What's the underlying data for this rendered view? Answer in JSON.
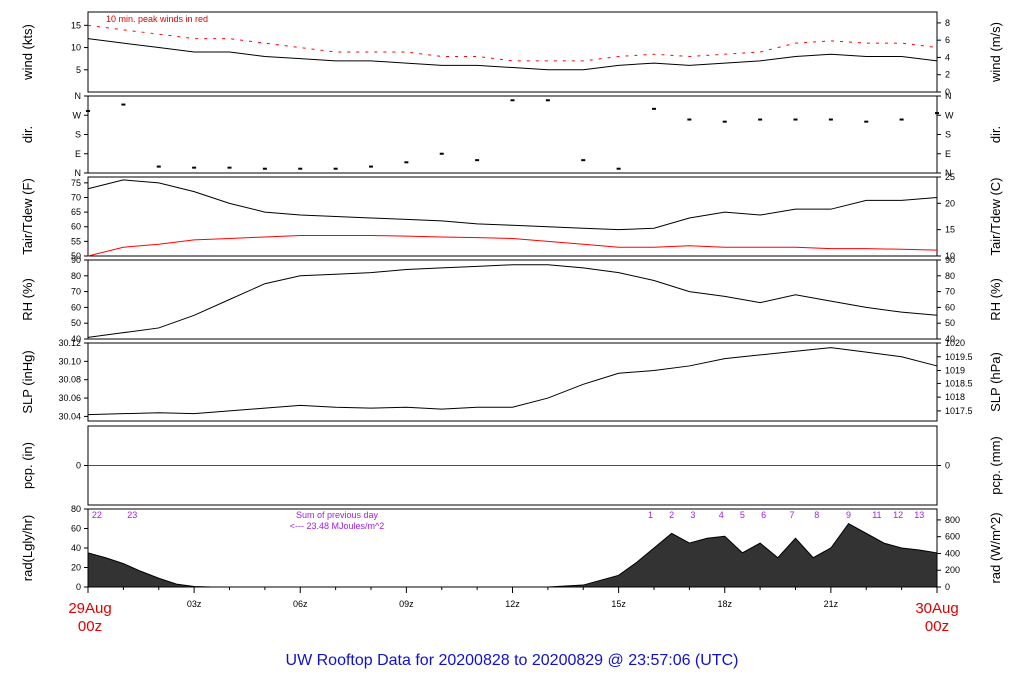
{
  "title": "UW Rooftop Data for 20200828  to  20200829 @ 23:57:06  (UTC)",
  "date_start": [
    "29Aug",
    "00z"
  ],
  "date_end": [
    "30Aug",
    "00z"
  ],
  "x_ticks": [
    "03z",
    "06z",
    "09z",
    "12z",
    "15z",
    "18z",
    "21z"
  ],
  "colors": {
    "series": "#000000",
    "peak": "#ff0000",
    "dewpoint": "#ff0000",
    "precip": "#ff0000",
    "purple": "#a020f0",
    "title": "#1010d0"
  },
  "chart_data": [
    {
      "id": "wind",
      "type": "line",
      "left_label": "wind (kts)",
      "right_label": "wind (m/s)",
      "annotation": "10 min. peak winds in red",
      "ylim": [
        0,
        18
      ],
      "left_ticks": [
        "5",
        "10",
        "15"
      ],
      "left_tick_values": [
        5,
        10,
        15
      ],
      "right_ticks": [
        "0",
        "2",
        "4",
        "6",
        "8"
      ],
      "right_tick_values": [
        0,
        3.89,
        7.78,
        11.66,
        15.55
      ],
      "x": [
        0,
        1,
        2,
        3,
        4,
        5,
        6,
        7,
        8,
        9,
        10,
        11,
        12,
        13,
        14,
        15,
        16,
        17,
        18,
        19,
        20,
        21,
        22,
        23,
        24
      ],
      "series": [
        {
          "values": [
            12,
            11,
            10,
            9,
            9,
            8,
            7.5,
            7,
            7,
            6.5,
            6,
            6,
            5.5,
            5,
            5,
            6,
            6.5,
            6,
            6.5,
            7,
            8,
            8.5,
            8,
            8,
            7
          ]
        },
        {
          "values": [
            15,
            14,
            13,
            12,
            12,
            11,
            10,
            9,
            9,
            9,
            8,
            8,
            7,
            7,
            7,
            8,
            8.5,
            8,
            8.5,
            9,
            11,
            11.5,
            11,
            11,
            10
          ]
        }
      ]
    },
    {
      "id": "dir",
      "type": "scatter",
      "left_label": "dir.",
      "right_label": "dir.",
      "ylim": [
        0,
        360
      ],
      "left_ticks": [
        "N",
        "E",
        "S",
        "W",
        "N"
      ],
      "left_tick_values": [
        0,
        90,
        180,
        270,
        360
      ],
      "right_ticks": [
        "N",
        "E",
        "S",
        "W",
        "N"
      ],
      "right_tick_values": [
        0,
        90,
        180,
        270,
        360
      ],
      "x": [
        0,
        1,
        2,
        3,
        4,
        5,
        6,
        7,
        8,
        9,
        10,
        11,
        12,
        13,
        14,
        15,
        16,
        17,
        18,
        19,
        20,
        21,
        22,
        23,
        24
      ],
      "series": [
        {
          "values": [
            290,
            320,
            30,
            25,
            25,
            20,
            20,
            20,
            30,
            50,
            90,
            60,
            340,
            340,
            60,
            20,
            300,
            250,
            240,
            250,
            250,
            250,
            240,
            250,
            280
          ]
        }
      ]
    },
    {
      "id": "temp",
      "type": "line",
      "left_label": "Tair/Tdew (F)",
      "right_label": "Tair/Tdew (C)",
      "ylim": [
        50,
        77
      ],
      "left_ticks": [
        "50",
        "55",
        "60",
        "65",
        "70",
        "75"
      ],
      "left_tick_values": [
        50,
        55,
        60,
        65,
        70,
        75
      ],
      "right_ticks": [
        "10",
        "15",
        "20",
        "25"
      ],
      "right_tick_values": [
        50,
        59,
        68,
        77
      ],
      "x": [
        0,
        1,
        2,
        3,
        4,
        5,
        6,
        7,
        8,
        9,
        10,
        11,
        12,
        13,
        14,
        15,
        16,
        17,
        18,
        19,
        20,
        21,
        22,
        23,
        24
      ],
      "series": [
        {
          "name": "Tair",
          "values": [
            73,
            76,
            75,
            72,
            68,
            65,
            64,
            63.5,
            63,
            62.5,
            62,
            61,
            60.5,
            60,
            59.5,
            59,
            59.5,
            63,
            65,
            64,
            66,
            66,
            69,
            69,
            70
          ]
        },
        {
          "name": "Tdew",
          "values": [
            50,
            53,
            54,
            55.5,
            56,
            56.5,
            57,
            57,
            57,
            56.8,
            56.5,
            56.3,
            56,
            55,
            54,
            53,
            53,
            53.5,
            53,
            53,
            53,
            52.5,
            52.5,
            52.3,
            52
          ]
        }
      ]
    },
    {
      "id": "rh",
      "type": "line",
      "left_label": "RH (%)",
      "right_label": "RH (%)",
      "ylim": [
        40,
        90
      ],
      "left_ticks": [
        "40",
        "50",
        "60",
        "70",
        "80",
        "90"
      ],
      "left_tick_values": [
        40,
        50,
        60,
        70,
        80,
        90
      ],
      "right_ticks": [
        "40",
        "50",
        "60",
        "70",
        "80",
        "90"
      ],
      "right_tick_values": [
        40,
        50,
        60,
        70,
        80,
        90
      ],
      "x": [
        0,
        1,
        2,
        3,
        4,
        5,
        6,
        7,
        8,
        9,
        10,
        11,
        12,
        13,
        14,
        15,
        16,
        17,
        18,
        19,
        20,
        21,
        22,
        23,
        24
      ],
      "series": [
        {
          "values": [
            41,
            44,
            47,
            55,
            65,
            75,
            80,
            81,
            82,
            84,
            85,
            86,
            87,
            87,
            85,
            82,
            77,
            70,
            67,
            63,
            68,
            64,
            60,
            57,
            55
          ]
        }
      ]
    },
    {
      "id": "slp",
      "type": "line",
      "left_label": "SLP (inHg)",
      "right_label": "SLP (hPa)",
      "ylim": [
        30.035,
        30.12
      ],
      "left_ticks": [
        "30.04",
        "30.06",
        "30.08",
        "30.10",
        "30.12"
      ],
      "left_tick_values": [
        30.04,
        30.06,
        30.08,
        30.1,
        30.12
      ],
      "right_ticks": [
        "1017.5",
        "1018",
        "1018.5",
        "1019",
        "1019.5",
        "1020"
      ],
      "right_tick_values": [
        30.046,
        30.061,
        30.076,
        30.09,
        30.105,
        30.12
      ],
      "x": [
        0,
        1,
        2,
        3,
        4,
        5,
        6,
        7,
        8,
        9,
        10,
        11,
        12,
        13,
        14,
        15,
        16,
        17,
        18,
        19,
        20,
        21,
        22,
        23,
        24
      ],
      "series": [
        {
          "values": [
            30.042,
            30.043,
            30.044,
            30.043,
            30.046,
            30.049,
            30.052,
            30.05,
            30.049,
            30.05,
            30.048,
            30.05,
            30.05,
            30.06,
            30.075,
            30.087,
            30.09,
            30.095,
            30.103,
            30.107,
            30.111,
            30.115,
            30.11,
            30.105,
            30.095
          ]
        }
      ]
    },
    {
      "id": "pcp",
      "type": "line",
      "left_label": "pcp. (in)",
      "right_label": "pcp. (mm)",
      "ylim": [
        -1,
        1
      ],
      "left_ticks": [
        "0"
      ],
      "left_tick_values": [
        0
      ],
      "right_ticks": [
        "0"
      ],
      "right_tick_values": [
        0
      ],
      "x": [
        0,
        24
      ],
      "series": [
        {
          "values": [
            0,
            0
          ]
        }
      ]
    },
    {
      "id": "rad",
      "type": "area",
      "left_label": "rad(Lgly/hr)",
      "right_label": "rad (W/m^2)",
      "ylim": [
        0,
        80
      ],
      "left_ticks": [
        "0",
        "20",
        "40",
        "60",
        "80"
      ],
      "left_tick_values": [
        0,
        20,
        40,
        60,
        80
      ],
      "right_ticks": [
        "0",
        "200",
        "400",
        "600",
        "800"
      ],
      "right_tick_values": [
        0,
        17.2,
        34.4,
        51.6,
        68.8
      ],
      "hour_labels": [
        "22",
        "23",
        "1",
        "2",
        "3",
        "4",
        "5",
        "6",
        "7",
        "8",
        "9",
        "11",
        "12",
        "13"
      ],
      "hour_label_x": [
        0.25,
        1.25,
        15.9,
        16.5,
        17.1,
        17.9,
        18.5,
        19.1,
        19.9,
        20.6,
        21.5,
        22.3,
        22.9,
        23.5
      ],
      "sum_text": [
        "Sum of previous day",
        "<--- 23.48 MJoules/m^2"
      ],
      "x": [
        0,
        0.5,
        1,
        1.5,
        2,
        2.5,
        3,
        3.5,
        4,
        13,
        14,
        15,
        15.5,
        16,
        16.5,
        17,
        17.5,
        18,
        18.5,
        19,
        19.5,
        20,
        20.5,
        21,
        21.5,
        22,
        22.5,
        23,
        23.5,
        24
      ],
      "series": [
        {
          "values": [
            35,
            30,
            24,
            16,
            9,
            3,
            0.5,
            0,
            0,
            0,
            2,
            12,
            25,
            40,
            55,
            45,
            50,
            52,
            35,
            45,
            30,
            50,
            30,
            40,
            65,
            55,
            45,
            40,
            38,
            35
          ]
        }
      ]
    }
  ]
}
